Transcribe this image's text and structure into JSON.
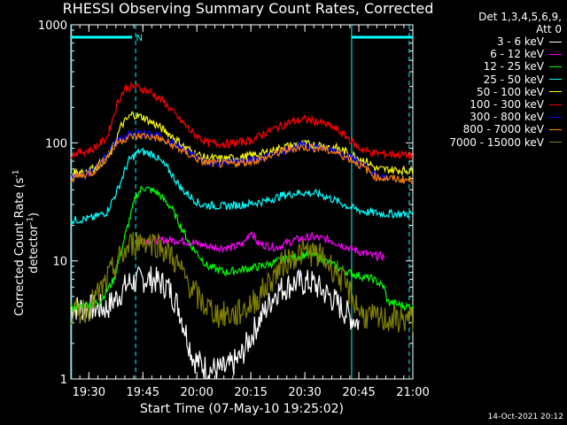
{
  "chart_data": {
    "type": "line",
    "title": "RHESSI Observing Summary Count Rates, Corrected",
    "xlabel": "Start Time (07-May-10 19:25:02)",
    "ylabel_parts": [
      "Corrected Count Rate (s",
      "-1",
      " detector",
      "-1",
      ")"
    ],
    "yscale": "log",
    "ylim": [
      1,
      1000
    ],
    "yticks": [
      {
        "v": 1,
        "label": "1"
      },
      {
        "v": 10,
        "label": "10"
      },
      {
        "v": 100,
        "label": "100"
      },
      {
        "v": 1000,
        "label": "1000"
      }
    ],
    "xlim_minutes": [
      0,
      95
    ],
    "xticks": [
      {
        "m": 5,
        "label": "19:30"
      },
      {
        "m": 20,
        "label": "19:45"
      },
      {
        "m": 35,
        "label": "20:00"
      },
      {
        "m": 50,
        "label": "20:15"
      },
      {
        "m": 65,
        "label": "20:30"
      },
      {
        "m": 80,
        "label": "20:45"
      },
      {
        "m": 95,
        "label": "21:00"
      }
    ],
    "legend_header": [
      "Det 1,3,4,5,6,9,",
      "Att 0"
    ],
    "flag_text": "N",
    "series": [
      {
        "name": "3 - 6 keV",
        "color": "#ffffff",
        "points": [
          [
            0,
            4
          ],
          [
            10,
            4
          ],
          [
            13,
            5
          ],
          [
            16,
            6.5
          ],
          [
            20,
            7
          ],
          [
            23,
            7
          ],
          [
            27,
            6
          ],
          [
            30,
            4
          ],
          [
            34,
            1.5
          ],
          [
            38,
            1.2
          ],
          [
            43,
            1.2
          ],
          [
            47,
            1.5
          ],
          [
            52,
            3
          ],
          [
            57,
            5.5
          ],
          [
            62,
            6.5
          ],
          [
            67,
            6.5
          ],
          [
            72,
            5
          ],
          [
            77,
            3.5
          ],
          [
            80,
            3
          ]
        ]
      },
      {
        "name": "6 - 12 keV",
        "color": "#ff00ff",
        "points": [
          [
            20,
            15
          ],
          [
            25,
            15
          ],
          [
            30,
            15
          ],
          [
            35,
            14
          ],
          [
            40,
            13
          ],
          [
            45,
            13
          ],
          [
            48,
            14
          ],
          [
            50,
            18
          ],
          [
            52,
            14
          ],
          [
            57,
            13
          ],
          [
            62,
            15
          ],
          [
            67,
            16
          ],
          [
            72,
            15
          ],
          [
            77,
            13
          ],
          [
            80,
            12
          ],
          [
            84,
            11
          ],
          [
            87,
            11
          ]
        ]
      },
      {
        "name": "12 - 25 keV",
        "color": "#00ff00",
        "points": [
          [
            0,
            4
          ],
          [
            8,
            4.5
          ],
          [
            12,
            7
          ],
          [
            15,
            16
          ],
          [
            18,
            35
          ],
          [
            20,
            42
          ],
          [
            24,
            38
          ],
          [
            28,
            28
          ],
          [
            33,
            14
          ],
          [
            38,
            9
          ],
          [
            43,
            8
          ],
          [
            48,
            8.5
          ],
          [
            53,
            9
          ],
          [
            58,
            10
          ],
          [
            63,
            11
          ],
          [
            67,
            11.5
          ],
          [
            72,
            9.5
          ],
          [
            77,
            8
          ],
          [
            80,
            7.5
          ],
          [
            84,
            7
          ],
          [
            87,
            6
          ],
          [
            88,
            4.5
          ],
          [
            95,
            4
          ]
        ]
      },
      {
        "name": "25 - 50 keV",
        "color": "#00ffff",
        "points": [
          [
            0,
            22
          ],
          [
            6,
            23
          ],
          [
            10,
            26
          ],
          [
            13,
            40
          ],
          [
            16,
            70
          ],
          [
            19,
            85
          ],
          [
            23,
            80
          ],
          [
            27,
            60
          ],
          [
            31,
            40
          ],
          [
            36,
            30
          ],
          [
            42,
            29
          ],
          [
            48,
            30
          ],
          [
            54,
            32
          ],
          [
            59,
            36
          ],
          [
            64,
            38
          ],
          [
            69,
            37
          ],
          [
            74,
            32
          ],
          [
            78,
            28
          ],
          [
            82,
            26
          ],
          [
            87,
            25
          ],
          [
            95,
            25
          ]
        ]
      },
      {
        "name": "50 - 100 keV",
        "color": "#ffff00",
        "points": [
          [
            0,
            55
          ],
          [
            7,
            62
          ],
          [
            11,
            80
          ],
          [
            14,
            140
          ],
          [
            17,
            175
          ],
          [
            20,
            165
          ],
          [
            24,
            140
          ],
          [
            28,
            115
          ],
          [
            32,
            90
          ],
          [
            37,
            75
          ],
          [
            42,
            73
          ],
          [
            48,
            76
          ],
          [
            54,
            82
          ],
          [
            59,
            92
          ],
          [
            64,
            98
          ],
          [
            69,
            96
          ],
          [
            74,
            90
          ],
          [
            78,
            80
          ],
          [
            82,
            70
          ],
          [
            85,
            60
          ],
          [
            95,
            58
          ]
        ]
      },
      {
        "name": "100 - 300 keV",
        "color": "#ff0000",
        "points": [
          [
            0,
            80
          ],
          [
            6,
            88
          ],
          [
            10,
            110
          ],
          [
            13,
            220
          ],
          [
            15,
            290
          ],
          [
            18,
            300
          ],
          [
            22,
            270
          ],
          [
            26,
            220
          ],
          [
            30,
            160
          ],
          [
            34,
            120
          ],
          [
            38,
            100
          ],
          [
            44,
            98
          ],
          [
            50,
            105
          ],
          [
            56,
            130
          ],
          [
            61,
            150
          ],
          [
            65,
            158
          ],
          [
            69,
            150
          ],
          [
            73,
            135
          ],
          [
            77,
            110
          ],
          [
            80,
            90
          ],
          [
            84,
            82
          ],
          [
            95,
            78
          ]
        ]
      },
      {
        "name": "300 - 800 keV",
        "color": "#0000ff",
        "points": [
          [
            0,
            50
          ],
          [
            6,
            58
          ],
          [
            10,
            80
          ],
          [
            13,
            105
          ],
          [
            16,
            118
          ],
          [
            20,
            120
          ],
          [
            24,
            115
          ],
          [
            28,
            100
          ],
          [
            32,
            85
          ],
          [
            37,
            70
          ],
          [
            42,
            68
          ],
          [
            48,
            70
          ],
          [
            54,
            75
          ],
          [
            58,
            85
          ],
          [
            62,
            92
          ],
          [
            65,
            95
          ],
          [
            69,
            92
          ],
          [
            74,
            85
          ],
          [
            78,
            75
          ],
          [
            82,
            62
          ],
          [
            85,
            52
          ],
          [
            88,
            50
          ]
        ]
      },
      {
        "name": "800 - 7000 keV",
        "color": "#ff8000",
        "points": [
          [
            0,
            50
          ],
          [
            6,
            56
          ],
          [
            10,
            75
          ],
          [
            13,
            102
          ],
          [
            16,
            112
          ],
          [
            20,
            115
          ],
          [
            24,
            110
          ],
          [
            28,
            96
          ],
          [
            32,
            82
          ],
          [
            37,
            68
          ],
          [
            42,
            66
          ],
          [
            48,
            68
          ],
          [
            54,
            74
          ],
          [
            58,
            83
          ],
          [
            62,
            90
          ],
          [
            65,
            92
          ],
          [
            69,
            90
          ],
          [
            74,
            82
          ],
          [
            78,
            72
          ],
          [
            82,
            60
          ],
          [
            85,
            51
          ],
          [
            95,
            48
          ]
        ]
      },
      {
        "name": "7000 - 15000 keV",
        "color": "#808000",
        "points": [
          [
            0,
            3.5
          ],
          [
            5,
            4
          ],
          [
            9,
            6
          ],
          [
            13,
            10
          ],
          [
            17,
            14
          ],
          [
            20,
            15
          ],
          [
            24,
            14
          ],
          [
            28,
            11
          ],
          [
            32,
            7
          ],
          [
            36,
            4.5
          ],
          [
            41,
            3.5
          ],
          [
            46,
            3.5
          ],
          [
            51,
            4.5
          ],
          [
            55,
            6.5
          ],
          [
            59,
            9.5
          ],
          [
            63,
            11.5
          ],
          [
            66,
            12
          ],
          [
            70,
            10.5
          ],
          [
            74,
            8
          ],
          [
            78,
            5
          ],
          [
            81,
            3.5
          ],
          [
            85,
            3.2
          ],
          [
            95,
            3.2
          ]
        ]
      }
    ],
    "grid": false,
    "legend_position": "top-right outside"
  },
  "timestamp": "14-Oct-2021 20:12"
}
